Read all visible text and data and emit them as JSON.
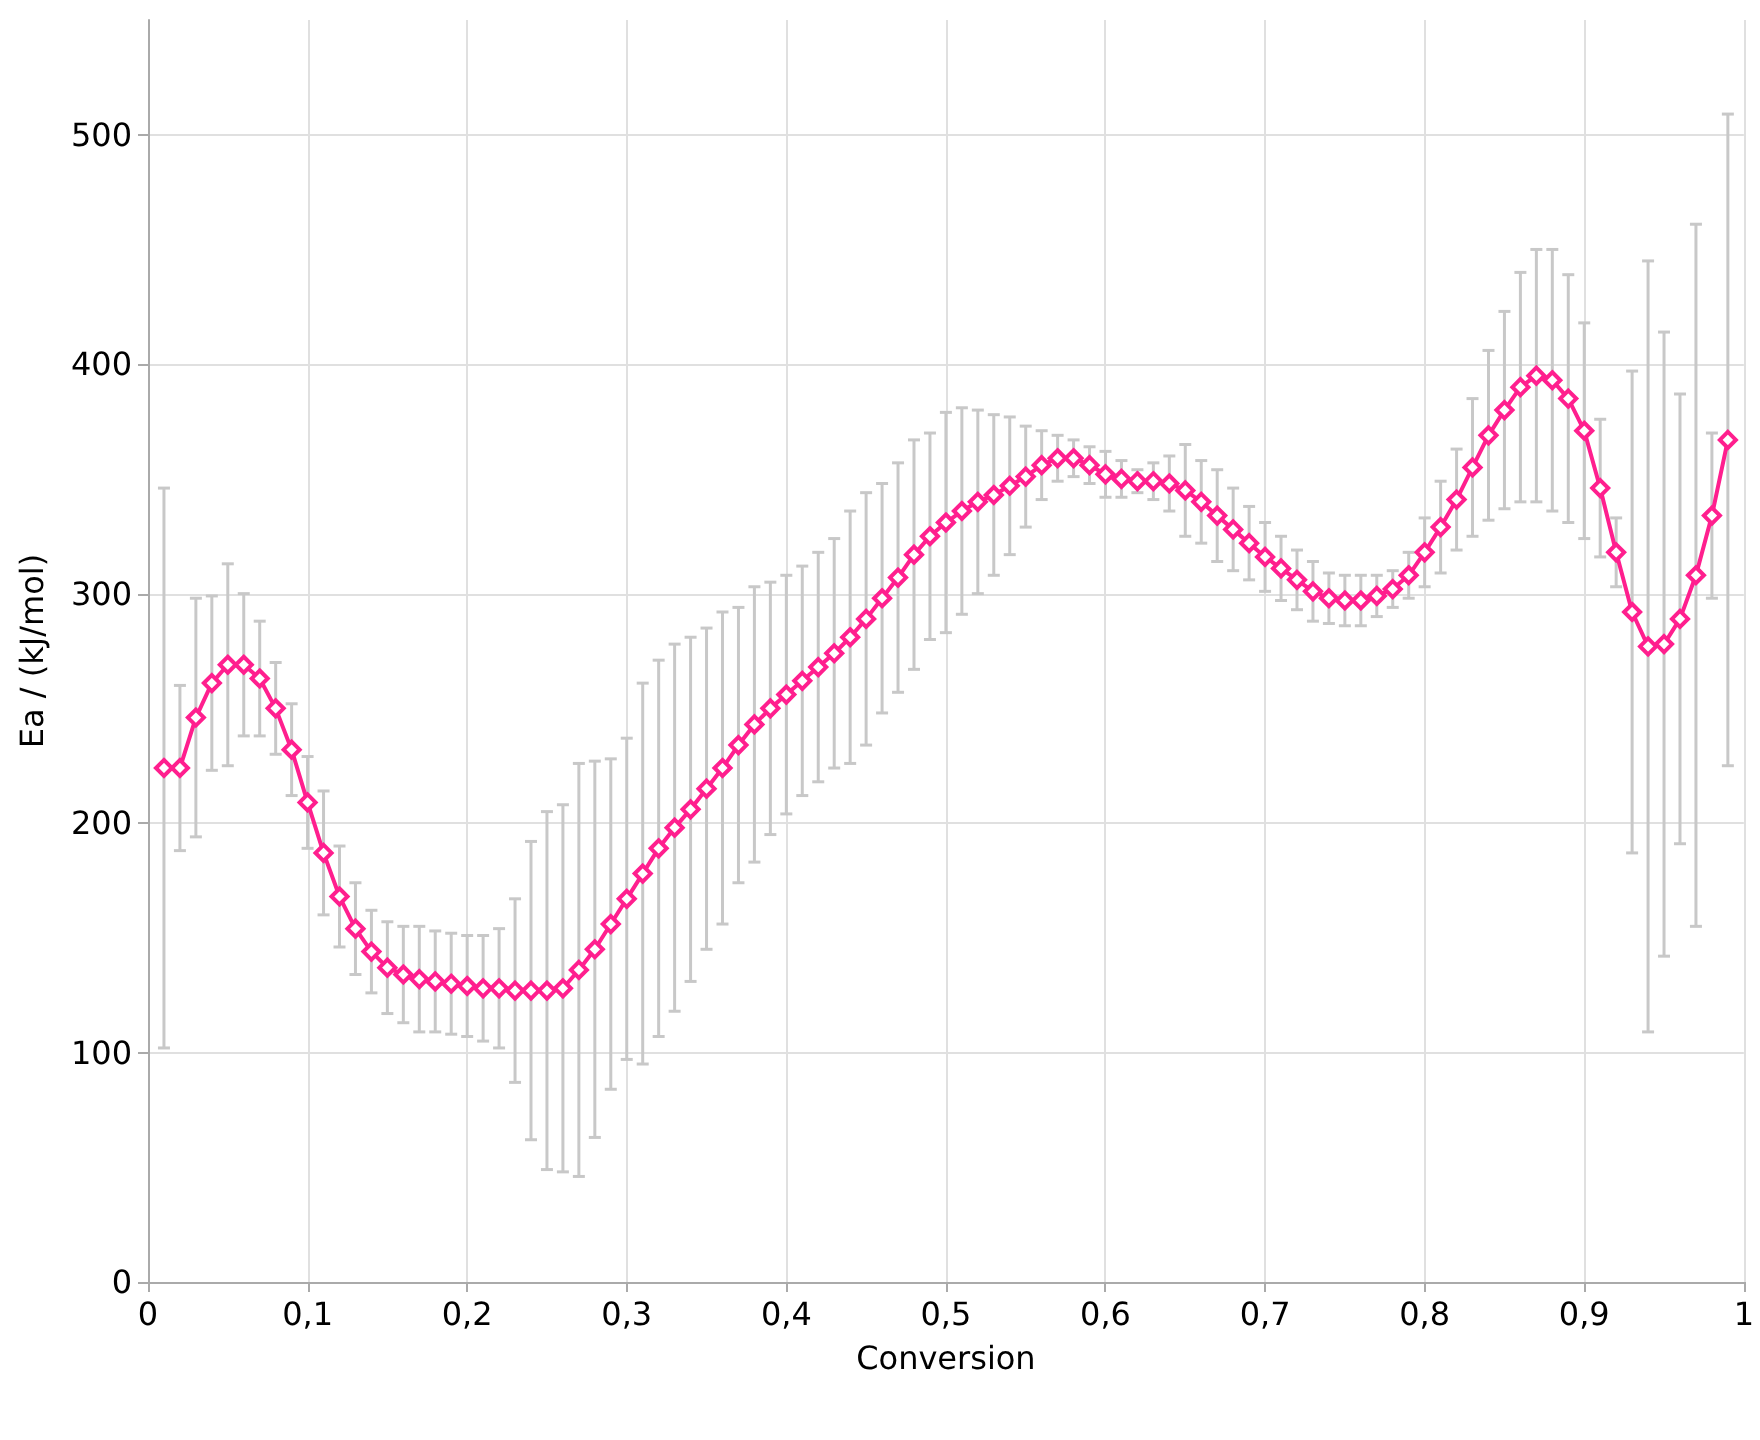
{
  "chart_data": {
    "type": "line",
    "xlabel": "Conversion",
    "ylabel": "Ea / (kJ/mol)",
    "x": [
      0.01,
      0.02,
      0.03,
      0.04,
      0.05,
      0.06,
      0.07,
      0.08,
      0.09,
      0.1,
      0.11,
      0.12,
      0.13,
      0.14,
      0.15,
      0.16,
      0.17,
      0.18,
      0.19,
      0.2,
      0.21,
      0.22,
      0.23,
      0.24,
      0.25,
      0.26,
      0.27,
      0.28,
      0.29,
      0.3,
      0.31,
      0.32,
      0.33,
      0.34,
      0.35,
      0.36,
      0.37,
      0.38,
      0.39,
      0.4,
      0.41,
      0.42,
      0.43,
      0.44,
      0.45,
      0.46,
      0.47,
      0.48,
      0.49,
      0.5,
      0.51,
      0.52,
      0.53,
      0.54,
      0.55,
      0.56,
      0.57,
      0.58,
      0.59,
      0.6,
      0.61,
      0.62,
      0.63,
      0.64,
      0.65,
      0.66,
      0.67,
      0.68,
      0.69,
      0.7,
      0.71,
      0.72,
      0.73,
      0.74,
      0.75,
      0.76,
      0.77,
      0.78,
      0.79,
      0.8,
      0.81,
      0.82,
      0.83,
      0.84,
      0.85,
      0.86,
      0.87,
      0.88,
      0.89,
      0.9,
      0.91,
      0.92,
      0.93,
      0.94,
      0.95,
      0.96,
      0.97,
      0.98,
      0.99
    ],
    "series": [
      {
        "color": "#ff1f8e",
        "values": [
          224,
          224,
          246,
          261,
          269,
          269,
          263,
          250,
          232,
          209,
          187,
          168,
          154,
          144,
          137,
          134,
          132,
          131,
          130,
          129,
          128,
          128,
          127,
          127,
          127,
          128,
          136,
          145,
          156,
          167,
          178,
          189,
          198,
          206,
          215,
          224,
          234,
          243,
          250,
          256,
          262,
          268,
          274,
          281,
          289,
          298,
          307,
          317,
          325,
          331,
          336,
          340,
          343,
          347,
          351,
          356,
          359,
          359,
          356,
          352,
          350,
          349,
          349,
          348,
          345,
          340,
          334,
          328,
          322,
          316,
          311,
          306,
          301,
          298,
          297,
          297,
          299,
          302,
          308,
          318,
          329,
          341,
          355,
          369,
          380,
          390,
          395,
          393,
          385,
          371,
          346,
          318,
          292,
          277,
          278,
          289,
          308,
          334,
          367
        ],
        "errors": [
          122,
          36,
          52,
          38,
          44,
          31,
          25,
          20,
          20,
          20,
          27,
          22,
          20,
          18,
          20,
          21,
          23,
          22,
          22,
          22,
          23,
          26,
          40,
          65,
          78,
          80,
          90,
          82,
          72,
          70,
          83,
          82,
          80,
          75,
          70,
          68,
          60,
          60,
          55,
          52,
          50,
          50,
          50,
          55,
          55,
          50,
          50,
          50,
          45,
          48,
          45,
          40,
          35,
          30,
          22,
          15,
          10,
          8,
          8,
          10,
          8,
          5,
          8,
          12,
          20,
          18,
          20,
          18,
          16,
          15,
          14,
          13,
          13,
          11,
          11,
          11,
          9,
          8,
          10,
          15,
          20,
          22,
          30,
          37,
          43,
          50,
          55,
          57,
          54,
          47,
          30,
          15,
          105,
          168,
          136,
          98,
          153,
          36,
          142
        ]
      }
    ],
    "xlim": [
      0,
      1
    ],
    "xticks": [
      0,
      {
        "value": 0.1,
        "label": "0,1"
      },
      {
        "value": 0.2,
        "label": "0,2"
      },
      {
        "value": 0.3,
        "label": "0,3"
      },
      {
        "value": 0.4,
        "label": "0,4"
      },
      {
        "value": 0.5,
        "label": "0,5"
      },
      {
        "value": 0.6,
        "label": "0,6"
      },
      {
        "value": 0.7,
        "label": "0,7"
      },
      {
        "value": 0.8,
        "label": "0,8"
      },
      {
        "value": 0.9,
        "label": "0,9"
      },
      1
    ],
    "ylim": [
      0,
      550
    ],
    "yticks": [
      0,
      100,
      200,
      300,
      400,
      500
    ],
    "grid": true,
    "marker": "diamond",
    "line_style": "solid"
  }
}
